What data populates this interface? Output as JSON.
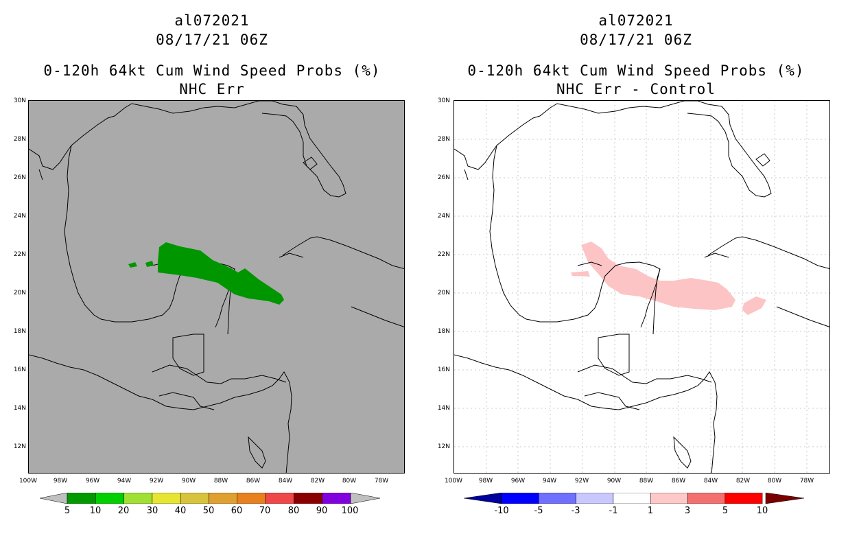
{
  "left": {
    "storm_id": "al072021",
    "datetime": "08/17/21 06Z",
    "product": "0-120h 64kt Cum Wind Speed Probs (%)",
    "subtitle": "NHC Err",
    "legend": {
      "colors": [
        "#009a00",
        "#00d000",
        "#a0e032",
        "#e6e632",
        "#d8c43c",
        "#e0a030",
        "#e8801e",
        "#f04848",
        "#8a0000",
        "#8000e0"
      ],
      "labels": [
        "5",
        "10",
        "20",
        "30",
        "40",
        "50",
        "60",
        "70",
        "80",
        "90",
        "100"
      ],
      "low_end_color": "#c0c0c0",
      "high_end_color": "#c0c0c0"
    }
  },
  "right": {
    "storm_id": "al072021",
    "datetime": "08/17/21 06Z",
    "product": "0-120h 64kt Cum Wind Speed Probs (%)",
    "subtitle": "NHC Err - Control",
    "legend": {
      "colors": [
        "#0000ff",
        "#7070ff",
        "#c8c8ff",
        "#ffffff",
        "#ffc8c8",
        "#f47070",
        "#ff0000"
      ],
      "labels": [
        "-10",
        "-5",
        "-3",
        "-1",
        "1",
        "3",
        "5",
        "10"
      ],
      "low_end_color": "#00009c",
      "high_end_color": "#7a0000"
    }
  },
  "axes": {
    "lat_labels": [
      "30N",
      "28N",
      "26N",
      "24N",
      "22N",
      "20N",
      "18N",
      "16N",
      "14N",
      "12N"
    ],
    "lon_labels": [
      "100W",
      "98W",
      "96W",
      "94W",
      "92W",
      "90W",
      "88W",
      "86W",
      "84W",
      "82W",
      "80W",
      "78W"
    ]
  },
  "map_extent": {
    "lon_min": -100,
    "lon_max": -76.5,
    "lat_min": 10.6,
    "lat_max": 30
  },
  "colors": {
    "map_background_left": "#aaaaaa",
    "map_background_right": "#ffffff",
    "swath_green": "#009600",
    "diff_pink": "#fcc4c4"
  }
}
